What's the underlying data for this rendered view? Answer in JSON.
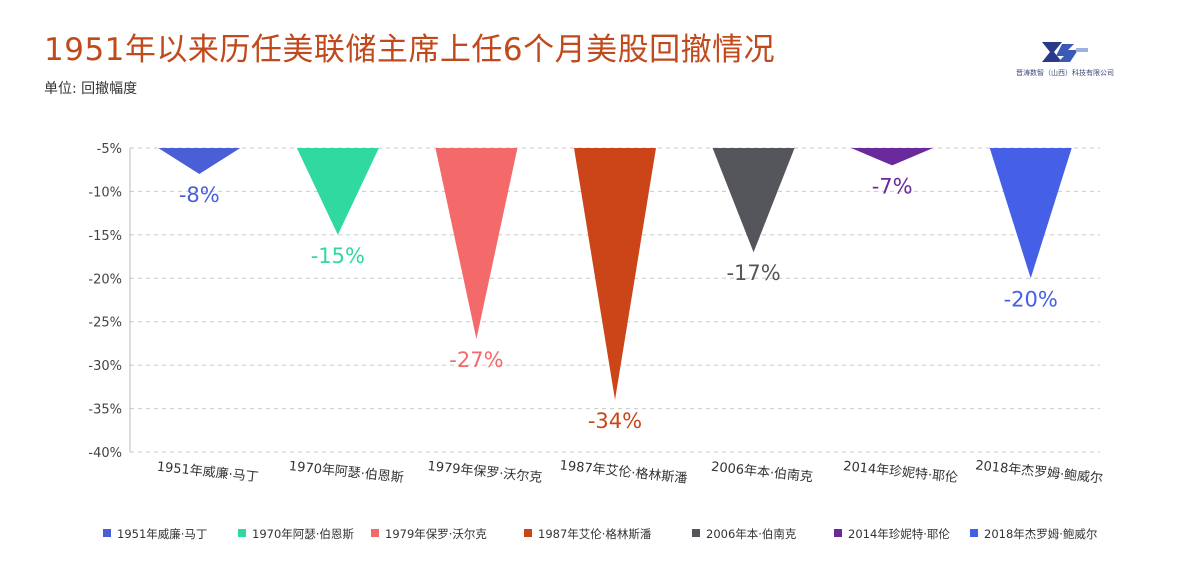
{
  "title": "1951年以来历任美联储主席上任6个月美股回撤情况",
  "unit_label": "单位: 回撤幅度",
  "logo": {
    "text": "晋涛数智（山西）科技有限公司",
    "icon": "company-logo-icon"
  },
  "chart_data": {
    "type": "triangle-bar",
    "categories": [
      "1951年威廉·马丁",
      "1970年阿瑟·伯恩斯",
      "1979年保罗·沃尔克",
      "1987年艾伦·格林斯潘",
      "2006年本·伯南克",
      "2014年珍妮特·耶伦",
      "2018年杰罗姆·鲍威尔"
    ],
    "values": [
      -8,
      -15,
      -27,
      -34,
      -17,
      -7,
      -20
    ],
    "value_labels": [
      "-8%",
      "-15%",
      "-27%",
      "-34%",
      "-17%",
      "-7%",
      "-20%"
    ],
    "colors": [
      "#4a5fd6",
      "#2fd9a0",
      "#f46a6a",
      "#cc4519",
      "#55555c",
      "#6b2a9c",
      "#4560e6"
    ],
    "label_colors": [
      "#4a5fd6",
      "#2fd9a0",
      "#f46a6a",
      "#cc4519",
      "#55555c",
      "#6b2a9c",
      "#4560e6"
    ],
    "ylim": [
      -40,
      -5
    ],
    "yticks": [
      -5,
      -10,
      -15,
      -20,
      -25,
      -30,
      -35,
      -40
    ],
    "ytick_labels": [
      "-5%",
      "-10%",
      "-15%",
      "-20%",
      "-25%",
      "-30%",
      "-35%",
      "-40%"
    ],
    "grid": true,
    "legend_position": "bottom",
    "xlabel": "",
    "ylabel": ""
  }
}
